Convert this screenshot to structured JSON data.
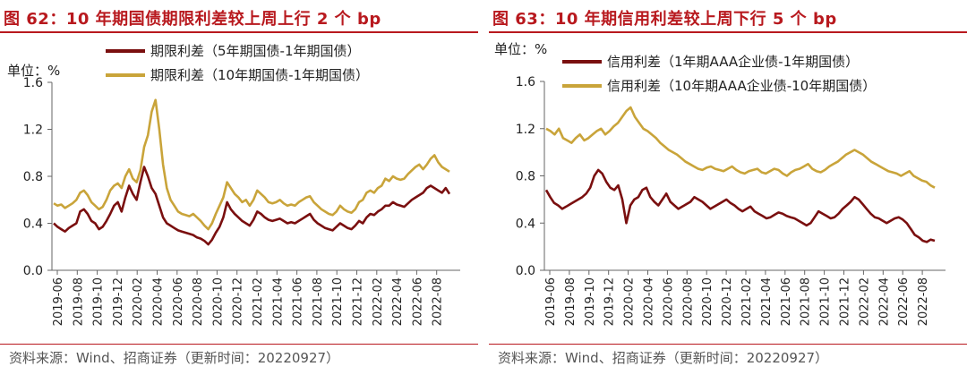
{
  "chart_data": [
    {
      "type": "line",
      "title": "图 62：10 年期国债期限利差较上周上行 2 个 bp",
      "unit_label": "单位：%",
      "ylim": [
        0,
        1.6
      ],
      "y_ticks": [
        "0.0",
        "0.4",
        "0.8",
        "1.2",
        "1.6"
      ],
      "x_ticks": [
        "2019-06",
        "2019-08",
        "2019-10",
        "2019-12",
        "2020-02",
        "2020-04",
        "2020-06",
        "2020-08",
        "2020-10",
        "2020-12",
        "2021-02",
        "2021-04",
        "2021-06",
        "2021-08",
        "2021-10",
        "2021-12",
        "2022-02",
        "2022-04",
        "2022-06",
        "2022-08"
      ],
      "legend_position": "top",
      "series": [
        {
          "name": "期限利差（5年期国债-1年期国债）",
          "color": "#7a0f0f",
          "values": [
            0.4,
            0.37,
            0.35,
            0.33,
            0.36,
            0.38,
            0.4,
            0.5,
            0.52,
            0.48,
            0.42,
            0.4,
            0.35,
            0.37,
            0.42,
            0.48,
            0.55,
            0.58,
            0.5,
            0.62,
            0.72,
            0.65,
            0.6,
            0.75,
            0.88,
            0.8,
            0.7,
            0.65,
            0.55,
            0.45,
            0.4,
            0.38,
            0.36,
            0.34,
            0.33,
            0.32,
            0.31,
            0.3,
            0.28,
            0.27,
            0.25,
            0.22,
            0.26,
            0.32,
            0.37,
            0.45,
            0.58,
            0.52,
            0.48,
            0.45,
            0.42,
            0.4,
            0.38,
            0.43,
            0.5,
            0.48,
            0.45,
            0.43,
            0.42,
            0.43,
            0.44,
            0.42,
            0.4,
            0.41,
            0.4,
            0.42,
            0.44,
            0.46,
            0.48,
            0.43,
            0.4,
            0.38,
            0.36,
            0.35,
            0.34,
            0.37,
            0.4,
            0.38,
            0.36,
            0.35,
            0.38,
            0.42,
            0.4,
            0.45,
            0.48,
            0.47,
            0.5,
            0.52,
            0.55,
            0.55,
            0.58,
            0.56,
            0.55,
            0.54,
            0.57,
            0.6,
            0.62,
            0.64,
            0.66,
            0.7,
            0.72,
            0.7,
            0.68,
            0.66,
            0.7,
            0.65
          ]
        },
        {
          "name": "期限利差（10年期国债-1年期国债）",
          "color": "#c9a43a",
          "values": [
            0.57,
            0.55,
            0.56,
            0.53,
            0.55,
            0.57,
            0.6,
            0.66,
            0.68,
            0.64,
            0.58,
            0.55,
            0.52,
            0.54,
            0.6,
            0.68,
            0.72,
            0.74,
            0.7,
            0.8,
            0.86,
            0.78,
            0.75,
            0.85,
            1.05,
            1.15,
            1.35,
            1.45,
            1.2,
            0.9,
            0.7,
            0.6,
            0.55,
            0.5,
            0.48,
            0.47,
            0.46,
            0.48,
            0.45,
            0.42,
            0.38,
            0.35,
            0.4,
            0.48,
            0.55,
            0.62,
            0.75,
            0.7,
            0.65,
            0.62,
            0.58,
            0.6,
            0.55,
            0.6,
            0.68,
            0.65,
            0.62,
            0.58,
            0.57,
            0.58,
            0.6,
            0.57,
            0.55,
            0.56,
            0.55,
            0.58,
            0.6,
            0.62,
            0.63,
            0.58,
            0.55,
            0.52,
            0.5,
            0.48,
            0.47,
            0.5,
            0.55,
            0.52,
            0.5,
            0.49,
            0.52,
            0.58,
            0.6,
            0.66,
            0.68,
            0.66,
            0.7,
            0.72,
            0.78,
            0.76,
            0.8,
            0.78,
            0.77,
            0.78,
            0.82,
            0.85,
            0.88,
            0.9,
            0.86,
            0.9,
            0.95,
            0.98,
            0.92,
            0.88,
            0.86,
            0.84
          ]
        }
      ]
    },
    {
      "type": "line",
      "title": "图 63：10 年期信用利差较上周下行 5 个 bp",
      "unit_label": "单位：%",
      "ylim": [
        0,
        1.6
      ],
      "y_ticks": [
        "0.0",
        "0.4",
        "0.8",
        "1.2",
        "1.6"
      ],
      "x_ticks": [
        "2019-06",
        "2019-08",
        "2019-10",
        "2019-12",
        "2020-02",
        "2020-04",
        "2020-06",
        "2020-08",
        "2020-10",
        "2020-12",
        "2021-02",
        "2021-04",
        "2021-06",
        "2021-08",
        "2021-10",
        "2021-12",
        "2022-02",
        "2022-04",
        "2022-06",
        "2022-08"
      ],
      "legend_position": "top",
      "series": [
        {
          "name": "信用利差（1年期AAA企业债-1年期国债）",
          "color": "#7a0f0f",
          "values": [
            0.68,
            0.62,
            0.57,
            0.55,
            0.52,
            0.54,
            0.56,
            0.58,
            0.6,
            0.62,
            0.65,
            0.7,
            0.8,
            0.85,
            0.82,
            0.75,
            0.7,
            0.68,
            0.72,
            0.6,
            0.4,
            0.55,
            0.6,
            0.62,
            0.68,
            0.7,
            0.62,
            0.58,
            0.55,
            0.6,
            0.65,
            0.58,
            0.55,
            0.52,
            0.54,
            0.56,
            0.58,
            0.62,
            0.6,
            0.58,
            0.55,
            0.52,
            0.54,
            0.56,
            0.58,
            0.6,
            0.57,
            0.55,
            0.52,
            0.5,
            0.52,
            0.54,
            0.5,
            0.48,
            0.46,
            0.44,
            0.45,
            0.47,
            0.49,
            0.48,
            0.46,
            0.45,
            0.44,
            0.42,
            0.4,
            0.38,
            0.4,
            0.45,
            0.5,
            0.48,
            0.46,
            0.44,
            0.45,
            0.48,
            0.52,
            0.55,
            0.58,
            0.62,
            0.6,
            0.56,
            0.52,
            0.48,
            0.45,
            0.44,
            0.42,
            0.4,
            0.42,
            0.44,
            0.45,
            0.43,
            0.4,
            0.35,
            0.3,
            0.28,
            0.25,
            0.24,
            0.26,
            0.25
          ]
        },
        {
          "name": "信用利差（10年期AAA企业债-10年期国债）",
          "color": "#c9a43a",
          "values": [
            1.2,
            1.18,
            1.15,
            1.2,
            1.12,
            1.1,
            1.08,
            1.12,
            1.15,
            1.1,
            1.12,
            1.15,
            1.18,
            1.2,
            1.15,
            1.18,
            1.22,
            1.25,
            1.3,
            1.35,
            1.38,
            1.3,
            1.25,
            1.2,
            1.18,
            1.15,
            1.12,
            1.08,
            1.05,
            1.02,
            1.0,
            0.98,
            0.95,
            0.92,
            0.9,
            0.88,
            0.86,
            0.85,
            0.87,
            0.88,
            0.86,
            0.85,
            0.84,
            0.86,
            0.88,
            0.85,
            0.83,
            0.82,
            0.84,
            0.85,
            0.86,
            0.83,
            0.82,
            0.84,
            0.86,
            0.85,
            0.82,
            0.8,
            0.83,
            0.85,
            0.86,
            0.88,
            0.9,
            0.86,
            0.84,
            0.83,
            0.85,
            0.88,
            0.9,
            0.92,
            0.95,
            0.98,
            1.0,
            1.02,
            1.0,
            0.98,
            0.95,
            0.92,
            0.9,
            0.88,
            0.86,
            0.84,
            0.83,
            0.82,
            0.8,
            0.82,
            0.84,
            0.8,
            0.78,
            0.76,
            0.75,
            0.72,
            0.7
          ]
        }
      ]
    }
  ],
  "source_text": "资料来源：Wind、招商证券（更新时间：20220927）"
}
